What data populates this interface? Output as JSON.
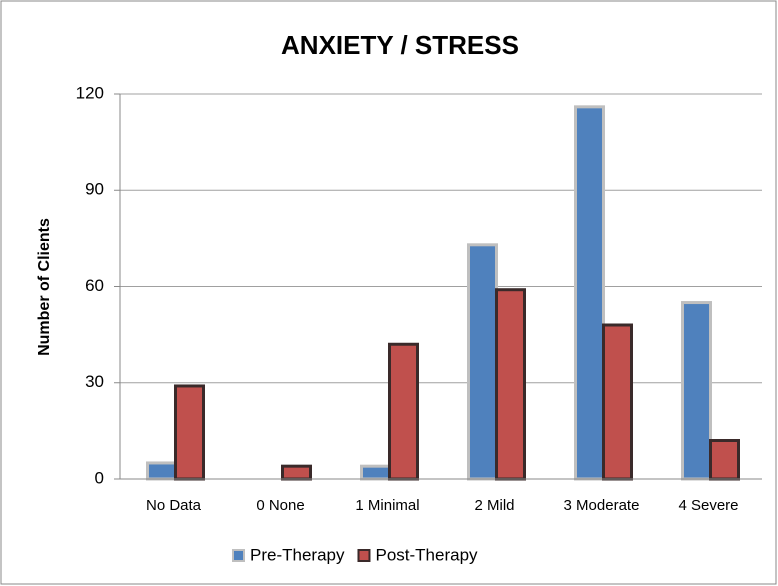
{
  "chart_data": {
    "type": "bar",
    "title": "ANXIETY / STRESS",
    "y_label": "Number of Clients",
    "categories": [
      "No Data",
      "0 None",
      "1 Minimal",
      "2 Mild",
      "3 Moderate",
      "4 Severe"
    ],
    "series": [
      {
        "name": "Pre-Therapy",
        "color": "#4f81bd",
        "values": [
          5,
          0,
          4,
          73,
          116,
          55
        ]
      },
      {
        "name": "Post-Therapy",
        "color": "#c0504d",
        "values": [
          29,
          4,
          42,
          59,
          48,
          12
        ]
      }
    ],
    "ylim": [
      0,
      120
    ],
    "yticks": [
      0,
      30,
      60,
      90,
      120
    ],
    "grid": true,
    "legend": "bottom"
  }
}
